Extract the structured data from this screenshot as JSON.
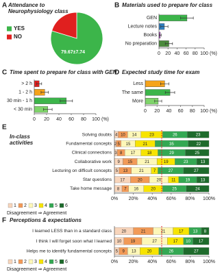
{
  "chart_data": [
    {
      "type": "pie",
      "panel": "A",
      "title": [
        "Attendance to",
        "Neurophysiology class"
      ],
      "categories": [
        "YES",
        "NO"
      ],
      "values": [
        79.67,
        20.33
      ],
      "value_labels": [
        "79.67±7.74",
        null
      ],
      "colors": [
        "#3cb54a",
        "#e0201f"
      ]
    },
    {
      "type": "hbar",
      "panel": "B",
      "title": "Materials used to prepare for class",
      "categories": [
        "GEN",
        "Lecture notes",
        "Books",
        "No preparation"
      ],
      "values": [
        62,
        12,
        3,
        22
      ],
      "errors": [
        14,
        8,
        2,
        8
      ],
      "colors": [
        "#3cb54a",
        "#2f7fc1",
        "#b04fc4",
        "#4a8a3c"
      ],
      "xlim": [
        0,
        100
      ],
      "xticks": [
        0,
        20,
        40,
        60,
        80,
        100
      ],
      "xlabel": "(%)"
    },
    {
      "type": "hbar",
      "panel": "C",
      "title": "Time spent to prepare for class with GEN",
      "categories": [
        "> 2 h",
        "1 - 2 h",
        "30 min - 1 h",
        "< 30 min"
      ],
      "values": [
        8,
        17,
        52,
        22
      ],
      "errors": [
        4,
        6,
        10,
        7
      ],
      "colors": [
        "#e0201f",
        "#f5a31a",
        "#3cb54a",
        "#7fd46a"
      ],
      "xlim": [
        0,
        100
      ],
      "xticks": [
        0,
        20,
        40,
        60,
        80,
        100
      ],
      "xlabel": "(%)"
    },
    {
      "type": "hbar",
      "panel": "D",
      "title": "Expected study time for exam",
      "categories": [
        "Less",
        "The same",
        "More"
      ],
      "values": [
        33,
        42,
        22
      ],
      "errors": [
        7,
        8,
        6
      ],
      "colors": [
        "#f5a31a",
        "#3cb54a",
        "#7fd46a"
      ],
      "xlim": [
        0,
        100
      ],
      "xticks": [
        0,
        20,
        40,
        60,
        80,
        100
      ],
      "xlabel": "(%)"
    },
    {
      "type": "stacked_hbar",
      "panel": "E",
      "title": [
        "In-class",
        "activities"
      ],
      "categories": [
        "Solving doubts",
        "Fundamental concepts",
        "Clinical connections",
        "Collaborative work",
        "Lecturing on difficult concepts",
        "Star questions",
        "Take home message"
      ],
      "series": [
        {
          "name": "1",
          "color": "#f8d5bb",
          "values": [
            4,
            2,
            3,
            9,
            5,
            17,
            8
          ]
        },
        {
          "name": "2",
          "color": "#f29a57",
          "values": [
            10,
            5,
            8,
            15,
            13,
            20,
            7
          ]
        },
        {
          "name": "3",
          "color": "#fdf7b8",
          "values": [
            14,
            15,
            17,
            21,
            21,
            20,
            16
          ]
        },
        {
          "name": "4",
          "color": "#f7e400",
          "values": [
            23,
            21,
            18,
            19,
            7,
            11,
            20
          ]
        },
        {
          "name": "5",
          "color": "#34a853",
          "values": [
            26,
            35,
            29,
            23,
            27,
            19,
            25
          ]
        },
        {
          "name": "6",
          "color": "#1e6b2c",
          "values": [
            23,
            22,
            25,
            13,
            27,
            13,
            24
          ]
        }
      ],
      "xlim": [
        0,
        100
      ],
      "xticks": [
        {
          "value": 0,
          "label": "0%"
        },
        {
          "value": 20,
          "label": "20%"
        },
        {
          "value": 40,
          "label": "40%"
        },
        {
          "value": 60,
          "label": "60%"
        },
        {
          "value": 80,
          "label": "80%"
        },
        {
          "value": 100,
          "label": "100%"
        }
      ],
      "legend_note": "Disagreement ⇒ Agreement",
      "reference_line": 50
    },
    {
      "type": "stacked_hbar",
      "panel": "F",
      "title": [
        "Perceptions & expectations"
      ],
      "categories": [
        "I learned LESS than in a standard class",
        "I think I will forget soon what I learned",
        "Helps me to identify fundamental concepts"
      ],
      "series": [
        {
          "name": "1",
          "color": "#f8d5bb",
          "values": [
            20,
            10,
            5
          ]
        },
        {
          "name": "2",
          "color": "#f29a57",
          "values": [
            21,
            19,
            9
          ]
        },
        {
          "name": "3",
          "color": "#fdf7b8",
          "values": [
            21,
            27,
            13
          ]
        },
        {
          "name": "4",
          "color": "#f7e400",
          "values": [
            17,
            17,
            20
          ]
        },
        {
          "name": "5",
          "color": "#34a853",
          "values": [
            13,
            10,
            26
          ]
        },
        {
          "name": "6",
          "color": "#1e6b2c",
          "values": [
            8,
            17,
            27
          ]
        }
      ],
      "xlim": [
        0,
        100
      ],
      "xticks": [
        {
          "value": 0,
          "label": "0%"
        },
        {
          "value": 20,
          "label": "20%"
        },
        {
          "value": 40,
          "label": "40%"
        },
        {
          "value": 60,
          "label": "60%"
        },
        {
          "value": 80,
          "label": "80%"
        },
        {
          "value": 100,
          "label": "100%"
        }
      ],
      "legend_note": "Disagreement ⇒ Agreement",
      "reference_line": 50
    }
  ]
}
